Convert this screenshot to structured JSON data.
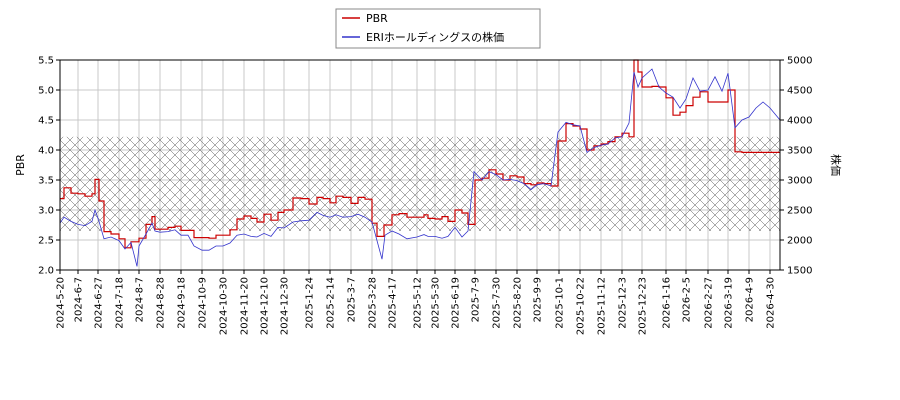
{
  "chart_data": {
    "type": "line",
    "legend": {
      "placement": "top-center",
      "entries": [
        {
          "name": "PBR",
          "color": "#cc0000"
        },
        {
          "name": "ERIホールディングスの株価",
          "color": "#3333cc"
        }
      ]
    },
    "y_left": {
      "label": "PBR",
      "ylim": [
        2.0,
        5.5
      ],
      "ticks": [
        "2.0",
        "2.5",
        "3.0",
        "3.5",
        "4.0",
        "4.5",
        "5.0",
        "5.5"
      ]
    },
    "y_right": {
      "label": "株価",
      "ylim": [
        1500,
        5000
      ],
      "ticks": [
        "1500",
        "2000",
        "2500",
        "3000",
        "3500",
        "4000",
        "4500",
        "5000"
      ]
    },
    "x_range": [
      "2024-05-20",
      "2026-05-10"
    ],
    "x_ticks": [
      "2024-5-20",
      "2024-6-7",
      "2024-6-27",
      "2024-7-18",
      "2024-8-7",
      "2024-8-28",
      "2024-9-18",
      "2024-10-9",
      "2024-10-30",
      "2024-11-20",
      "2024-12-10",
      "2024-12-30",
      "2025-1-24",
      "2025-2-14",
      "2025-3-7",
      "2025-3-28",
      "2025-4-17",
      "2025-5-12",
      "2025-5-30",
      "2025-6-19",
      "2025-7-9",
      "2025-7-30",
      "2025-8-20",
      "2025-9-9",
      "2025-10-1",
      "2025-10-22",
      "2025-11-12",
      "2025-12-3",
      "2025-12-23",
      "2026-1-16",
      "2026-2-5",
      "2026-2-27",
      "2026-3-19",
      "2026-4-9",
      "2026-4-30"
    ],
    "grid": true,
    "shaded_band": {
      "axis": "left",
      "range": [
        2.65,
        4.22
      ],
      "pattern": "crosshatch"
    },
    "series": [
      {
        "name": "PBR",
        "axis": "left",
        "color": "#cc0000",
        "points": [
          [
            "2024-05-20",
            3.19
          ],
          [
            "2024-05-24",
            3.37
          ],
          [
            "2024-05-31",
            3.28
          ],
          [
            "2024-06-07",
            3.27
          ],
          [
            "2024-06-14",
            3.23
          ],
          [
            "2024-06-21",
            3.27
          ],
          [
            "2024-06-24",
            3.51
          ],
          [
            "2024-06-28",
            3.15
          ],
          [
            "2024-07-03",
            2.64
          ],
          [
            "2024-07-10",
            2.6
          ],
          [
            "2024-07-18",
            2.52
          ],
          [
            "2024-07-24",
            2.37
          ],
          [
            "2024-07-30",
            2.47
          ],
          [
            "2024-08-07",
            2.53
          ],
          [
            "2024-08-14",
            2.76
          ],
          [
            "2024-08-20",
            2.89
          ],
          [
            "2024-08-23",
            2.68
          ],
          [
            "2024-08-28",
            2.68
          ],
          [
            "2024-09-05",
            2.71
          ],
          [
            "2024-09-12",
            2.73
          ],
          [
            "2024-09-18",
            2.66
          ],
          [
            "2024-09-25",
            2.66
          ],
          [
            "2024-10-01",
            2.54
          ],
          [
            "2024-10-09",
            2.54
          ],
          [
            "2024-10-16",
            2.53
          ],
          [
            "2024-10-23",
            2.58
          ],
          [
            "2024-10-30",
            2.58
          ],
          [
            "2024-11-06",
            2.67
          ],
          [
            "2024-11-13",
            2.85
          ],
          [
            "2024-11-20",
            2.9
          ],
          [
            "2024-11-27",
            2.86
          ],
          [
            "2024-12-03",
            2.8
          ],
          [
            "2024-12-10",
            2.93
          ],
          [
            "2024-12-17",
            2.83
          ],
          [
            "2024-12-24",
            2.96
          ],
          [
            "2024-12-30",
            3.0
          ],
          [
            "2025-01-08",
            3.2
          ],
          [
            "2025-01-16",
            3.19
          ],
          [
            "2025-01-24",
            3.1
          ],
          [
            "2025-02-01",
            3.21
          ],
          [
            "2025-02-07",
            3.19
          ],
          [
            "2025-02-14",
            3.12
          ],
          [
            "2025-02-20",
            3.23
          ],
          [
            "2025-02-27",
            3.21
          ],
          [
            "2025-03-07",
            3.11
          ],
          [
            "2025-03-14",
            3.21
          ],
          [
            "2025-03-21",
            3.18
          ],
          [
            "2025-03-28",
            2.78
          ],
          [
            "2025-04-02",
            2.56
          ],
          [
            "2025-04-09",
            2.75
          ],
          [
            "2025-04-17",
            2.92
          ],
          [
            "2025-04-24",
            2.94
          ],
          [
            "2025-05-02",
            2.88
          ],
          [
            "2025-05-12",
            2.88
          ],
          [
            "2025-05-19",
            2.92
          ],
          [
            "2025-05-23",
            2.86
          ],
          [
            "2025-05-30",
            2.85
          ],
          [
            "2025-06-06",
            2.89
          ],
          [
            "2025-06-12",
            2.81
          ],
          [
            "2025-06-19",
            3.0
          ],
          [
            "2025-06-26",
            2.95
          ],
          [
            "2025-07-02",
            2.76
          ],
          [
            "2025-07-09",
            3.5
          ],
          [
            "2025-07-16",
            3.53
          ],
          [
            "2025-07-23",
            3.67
          ],
          [
            "2025-07-30",
            3.6
          ],
          [
            "2025-08-06",
            3.5
          ],
          [
            "2025-08-13",
            3.57
          ],
          [
            "2025-08-20",
            3.55
          ],
          [
            "2025-08-27",
            3.44
          ],
          [
            "2025-09-03",
            3.42
          ],
          [
            "2025-09-09",
            3.45
          ],
          [
            "2025-09-16",
            3.44
          ],
          [
            "2025-09-23",
            3.4
          ],
          [
            "2025-09-30",
            4.15
          ],
          [
            "2025-10-08",
            4.44
          ],
          [
            "2025-10-15",
            4.4
          ],
          [
            "2025-10-22",
            4.35
          ],
          [
            "2025-10-29",
            4.0
          ],
          [
            "2025-11-05",
            4.07
          ],
          [
            "2025-11-12",
            4.1
          ],
          [
            "2025-11-19",
            4.14
          ],
          [
            "2025-11-26",
            4.22
          ],
          [
            "2025-12-03",
            4.28
          ],
          [
            "2025-12-10",
            4.22
          ],
          [
            "2025-12-15",
            5.5
          ],
          [
            "2025-12-19",
            5.3
          ],
          [
            "2025-12-23",
            5.05
          ],
          [
            "2026-01-02",
            5.06
          ],
          [
            "2026-01-09",
            5.05
          ],
          [
            "2026-01-16",
            4.87
          ],
          [
            "2026-01-23",
            4.58
          ],
          [
            "2026-01-30",
            4.63
          ],
          [
            "2026-02-05",
            4.74
          ],
          [
            "2026-02-12",
            4.88
          ],
          [
            "2026-02-19",
            4.97
          ],
          [
            "2026-02-27",
            4.8
          ],
          [
            "2026-03-06",
            4.8
          ],
          [
            "2026-03-13",
            4.8
          ],
          [
            "2026-03-19",
            5.0
          ],
          [
            "2026-03-26",
            3.97
          ],
          [
            "2026-04-02",
            3.96
          ],
          [
            "2026-04-09",
            3.96
          ],
          [
            "2026-04-16",
            3.96
          ],
          [
            "2026-04-23",
            3.96
          ],
          [
            "2026-05-10",
            3.96
          ]
        ]
      },
      {
        "name": "ERIホールディングスの株価",
        "axis": "right",
        "color": "#3333cc",
        "points": [
          [
            "2024-05-20",
            2280
          ],
          [
            "2024-05-24",
            2380
          ],
          [
            "2024-05-31",
            2310
          ],
          [
            "2024-06-07",
            2260
          ],
          [
            "2024-06-14",
            2240
          ],
          [
            "2024-06-21",
            2310
          ],
          [
            "2024-06-24",
            2500
          ],
          [
            "2024-06-28",
            2310
          ],
          [
            "2024-07-03",
            2020
          ],
          [
            "2024-07-10",
            2050
          ],
          [
            "2024-07-18",
            1990
          ],
          [
            "2024-07-24",
            1850
          ],
          [
            "2024-07-30",
            1960
          ],
          [
            "2024-08-05",
            1560
          ],
          [
            "2024-08-07",
            1900
          ],
          [
            "2024-08-14",
            2100
          ],
          [
            "2024-08-20",
            2280
          ],
          [
            "2024-08-23",
            2150
          ],
          [
            "2024-08-28",
            2130
          ],
          [
            "2024-09-05",
            2140
          ],
          [
            "2024-09-12",
            2170
          ],
          [
            "2024-09-18",
            2080
          ],
          [
            "2024-09-25",
            2080
          ],
          [
            "2024-10-01",
            1900
          ],
          [
            "2024-10-09",
            1830
          ],
          [
            "2024-10-16",
            1830
          ],
          [
            "2024-10-23",
            1900
          ],
          [
            "2024-10-30",
            1900
          ],
          [
            "2024-11-06",
            1950
          ],
          [
            "2024-11-13",
            2080
          ],
          [
            "2024-11-20",
            2100
          ],
          [
            "2024-11-27",
            2060
          ],
          [
            "2024-12-03",
            2050
          ],
          [
            "2024-12-10",
            2110
          ],
          [
            "2024-12-17",
            2060
          ],
          [
            "2024-12-24",
            2210
          ],
          [
            "2024-12-30",
            2200
          ],
          [
            "2025-01-08",
            2300
          ],
          [
            "2025-01-16",
            2320
          ],
          [
            "2025-01-24",
            2330
          ],
          [
            "2025-02-01",
            2460
          ],
          [
            "2025-02-07",
            2410
          ],
          [
            "2025-02-14",
            2380
          ],
          [
            "2025-02-20",
            2420
          ],
          [
            "2025-02-27",
            2380
          ],
          [
            "2025-03-07",
            2390
          ],
          [
            "2025-03-14",
            2430
          ],
          [
            "2025-03-21",
            2380
          ],
          [
            "2025-03-28",
            2300
          ],
          [
            "2025-04-07",
            1680
          ],
          [
            "2025-04-10",
            2080
          ],
          [
            "2025-04-17",
            2150
          ],
          [
            "2025-04-24",
            2100
          ],
          [
            "2025-05-02",
            2020
          ],
          [
            "2025-05-12",
            2050
          ],
          [
            "2025-05-19",
            2090
          ],
          [
            "2025-05-23",
            2060
          ],
          [
            "2025-05-30",
            2060
          ],
          [
            "2025-06-06",
            2030
          ],
          [
            "2025-06-12",
            2060
          ],
          [
            "2025-06-19",
            2210
          ],
          [
            "2025-06-26",
            2050
          ],
          [
            "2025-07-02",
            2150
          ],
          [
            "2025-07-08",
            3140
          ],
          [
            "2025-07-16",
            3000
          ],
          [
            "2025-07-23",
            3140
          ],
          [
            "2025-07-30",
            3090
          ],
          [
            "2025-08-06",
            3000
          ],
          [
            "2025-08-13",
            3010
          ],
          [
            "2025-08-20",
            2990
          ],
          [
            "2025-08-27",
            2940
          ],
          [
            "2025-09-03",
            2840
          ],
          [
            "2025-09-09",
            2920
          ],
          [
            "2025-09-16",
            2940
          ],
          [
            "2025-09-23",
            2900
          ],
          [
            "2025-09-30",
            3800
          ],
          [
            "2025-10-08",
            3960
          ],
          [
            "2025-10-15",
            3920
          ],
          [
            "2025-10-22",
            3900
          ],
          [
            "2025-10-29",
            3460
          ],
          [
            "2025-11-05",
            3540
          ],
          [
            "2025-11-12",
            3580
          ],
          [
            "2025-11-19",
            3600
          ],
          [
            "2025-11-26",
            3700
          ],
          [
            "2025-12-03",
            3720
          ],
          [
            "2025-12-10",
            3950
          ],
          [
            "2025-12-15",
            4800
          ],
          [
            "2025-12-19",
            4550
          ],
          [
            "2025-12-23",
            4700
          ],
          [
            "2026-01-02",
            4850
          ],
          [
            "2026-01-09",
            4550
          ],
          [
            "2026-01-16",
            4450
          ],
          [
            "2026-01-23",
            4380
          ],
          [
            "2026-01-30",
            4200
          ],
          [
            "2026-02-05",
            4350
          ],
          [
            "2026-02-12",
            4700
          ],
          [
            "2026-02-19",
            4480
          ],
          [
            "2026-02-27",
            4500
          ],
          [
            "2026-03-06",
            4720
          ],
          [
            "2026-03-13",
            4480
          ],
          [
            "2026-03-19",
            4780
          ],
          [
            "2026-03-26",
            3870
          ],
          [
            "2026-04-02",
            4000
          ],
          [
            "2026-04-09",
            4050
          ],
          [
            "2026-04-16",
            4200
          ],
          [
            "2026-04-23",
            4300
          ],
          [
            "2026-04-30",
            4200
          ],
          [
            "2026-05-10",
            4000
          ]
        ]
      }
    ]
  }
}
